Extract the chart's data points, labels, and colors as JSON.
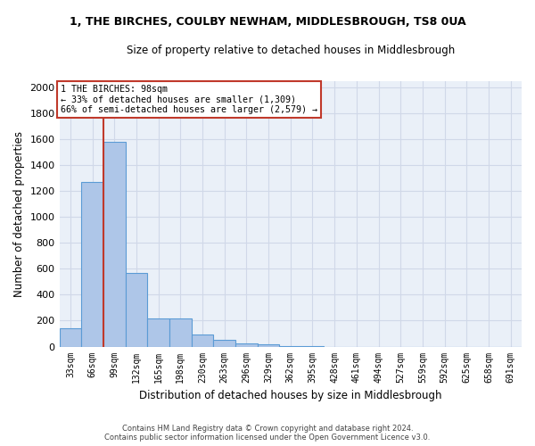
{
  "title1": "1, THE BIRCHES, COULBY NEWHAM, MIDDLESBROUGH, TS8 0UA",
  "title2": "Size of property relative to detached houses in Middlesbrough",
  "xlabel": "Distribution of detached houses by size in Middlesbrough",
  "ylabel": "Number of detached properties",
  "footer1": "Contains HM Land Registry data © Crown copyright and database right 2024.",
  "footer2": "Contains public sector information licensed under the Open Government Licence v3.0.",
  "categories": [
    "33sqm",
    "66sqm",
    "99sqm",
    "132sqm",
    "165sqm",
    "198sqm",
    "230sqm",
    "263sqm",
    "296sqm",
    "329sqm",
    "362sqm",
    "395sqm",
    "428sqm",
    "461sqm",
    "494sqm",
    "527sqm",
    "559sqm",
    "592sqm",
    "625sqm",
    "658sqm",
    "691sqm"
  ],
  "values": [
    140,
    1270,
    1580,
    565,
    220,
    220,
    95,
    50,
    25,
    18,
    5,
    5,
    0,
    0,
    0,
    0,
    0,
    0,
    0,
    0,
    0
  ],
  "bar_color": "#aec6e8",
  "bar_edge_color": "#5b9bd5",
  "property_bar_index": 2,
  "vline_x": 1.5,
  "vline_color": "#c0392b",
  "annotation_text": "1 THE BIRCHES: 98sqm\n← 33% of detached houses are smaller (1,309)\n66% of semi-detached houses are larger (2,579) →",
  "annotation_box_color": "#c0392b",
  "ylim": [
    0,
    2050
  ],
  "yticks": [
    0,
    200,
    400,
    600,
    800,
    1000,
    1200,
    1400,
    1600,
    1800,
    2000
  ],
  "grid_color": "#d0d8e8",
  "background_color": "#eaf0f8"
}
